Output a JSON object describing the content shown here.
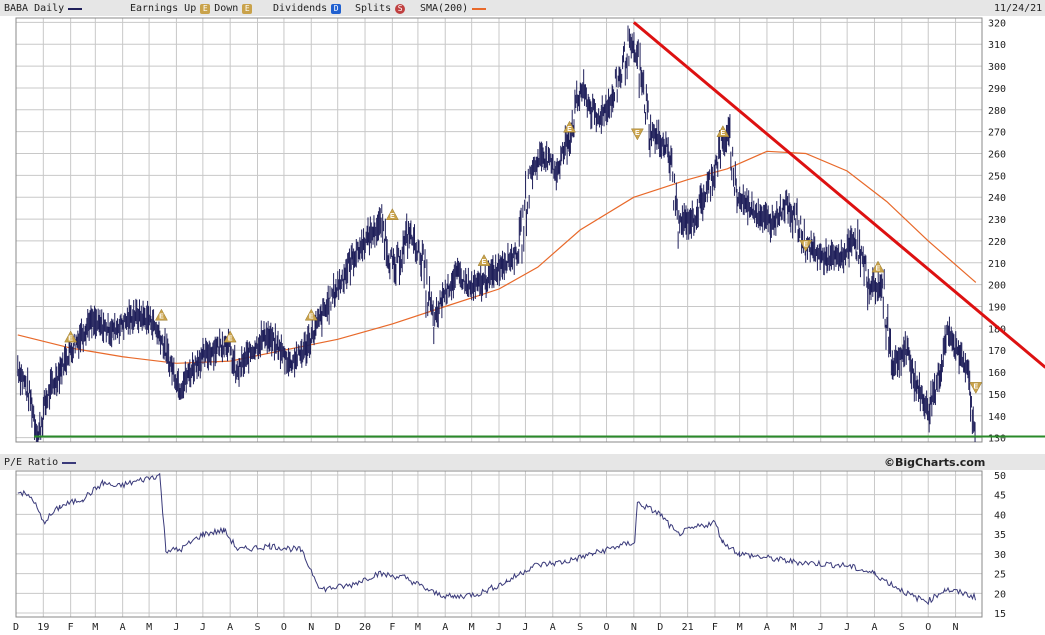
{
  "header": {
    "symbol_label": "BABA Daily",
    "earnings_label": "Earnings Up",
    "down_label": "Down",
    "dividends_label": "Dividends",
    "splits_label": "Splits",
    "sma_label": "SMA(200)",
    "date": "11/24/21",
    "badge_up": "E",
    "badge_down": "E",
    "badge_div": "D",
    "badge_split": "S"
  },
  "pe": {
    "label": "P/E Ratio",
    "credit": "©BigCharts.com"
  },
  "colors": {
    "price": "#1f1f5a",
    "sma": "#e8692a",
    "trendline": "#dd1111",
    "support": "#2a8a2a",
    "earnings": "#c9a24a",
    "dividend": "#2060d0",
    "split": "#c04040",
    "pe": "#3a3a7a",
    "grid": "#c8c8c8"
  },
  "chart_data": [
    {
      "type": "line",
      "name": "price",
      "ylim": [
        128,
        322
      ],
      "yticks": [
        130,
        140,
        150,
        160,
        170,
        180,
        190,
        200,
        210,
        220,
        230,
        240,
        250,
        260,
        270,
        280,
        290,
        300,
        310,
        320
      ],
      "series": [
        {
          "name": "BABA Daily",
          "points": [
            [
              "2018-12-03",
              163
            ],
            [
              "2018-12-18",
              147
            ],
            [
              "2018-12-26",
              130
            ],
            [
              "2019-01-04",
              147
            ],
            [
              "2019-01-20",
              161
            ],
            [
              "2019-02-01",
              170
            ],
            [
              "2019-02-22",
              183
            ],
            [
              "2019-03-20",
              179
            ],
            [
              "2019-04-15",
              186
            ],
            [
              "2019-05-03",
              184
            ],
            [
              "2019-05-14",
              176
            ],
            [
              "2019-05-25",
              164
            ],
            [
              "2019-06-05",
              153
            ],
            [
              "2019-06-25",
              165
            ],
            [
              "2019-07-15",
              171
            ],
            [
              "2019-07-29",
              174
            ],
            [
              "2019-08-08",
              159
            ],
            [
              "2019-08-22",
              168
            ],
            [
              "2019-09-10",
              177
            ],
            [
              "2019-09-25",
              171
            ],
            [
              "2019-10-08",
              164
            ],
            [
              "2019-10-24",
              170
            ],
            [
              "2019-11-10",
              183
            ],
            [
              "2019-11-28",
              197
            ],
            [
              "2019-12-18",
              212
            ],
            [
              "2020-01-05",
              222
            ],
            [
              "2020-01-20",
              228
            ],
            [
              "2020-02-03",
              205
            ],
            [
              "2020-02-20",
              224
            ],
            [
              "2020-03-05",
              212
            ],
            [
              "2020-03-19",
              180
            ],
            [
              "2020-03-29",
              195
            ],
            [
              "2020-04-15",
              205
            ],
            [
              "2020-04-30",
              198
            ],
            [
              "2020-05-18",
              202
            ],
            [
              "2020-06-05",
              210
            ],
            [
              "2020-06-24",
              215
            ],
            [
              "2020-07-06",
              250
            ],
            [
              "2020-07-20",
              260
            ],
            [
              "2020-08-05",
              252
            ],
            [
              "2020-08-20",
              268
            ],
            [
              "2020-09-02",
              290
            ],
            [
              "2020-09-20",
              275
            ],
            [
              "2020-10-08",
              285
            ],
            [
              "2020-10-27",
              310
            ],
            [
              "2020-11-05",
              303
            ],
            [
              "2020-11-20",
              270
            ],
            [
              "2020-12-10",
              262
            ],
            [
              "2020-12-22",
              228
            ],
            [
              "2021-01-08",
              230
            ],
            [
              "2021-01-25",
              245
            ],
            [
              "2021-02-10",
              265
            ],
            [
              "2021-02-17",
              268
            ],
            [
              "2021-02-26",
              240
            ],
            [
              "2021-03-15",
              235
            ],
            [
              "2021-04-05",
              228
            ],
            [
              "2021-04-25",
              238
            ],
            [
              "2021-05-15",
              218
            ],
            [
              "2021-06-05",
              212
            ],
            [
              "2021-06-25",
              212
            ],
            [
              "2021-07-10",
              222
            ],
            [
              "2021-07-25",
              200
            ],
            [
              "2021-08-10",
              198
            ],
            [
              "2021-08-22",
              163
            ],
            [
              "2021-09-05",
              170
            ],
            [
              "2021-09-20",
              152
            ],
            [
              "2021-10-01",
              142
            ],
            [
              "2021-10-15",
              162
            ],
            [
              "2021-10-22",
              178
            ],
            [
              "2021-11-05",
              168
            ],
            [
              "2021-11-15",
              163
            ],
            [
              "2021-11-18",
              145
            ],
            [
              "2021-11-24",
              131
            ]
          ]
        },
        {
          "name": "SMA(200)",
          "points": [
            [
              "2018-12-03",
              177
            ],
            [
              "2019-02-01",
              171
            ],
            [
              "2019-04-01",
              167
            ],
            [
              "2019-06-01",
              164
            ],
            [
              "2019-08-01",
              165
            ],
            [
              "2019-10-01",
              170
            ],
            [
              "2019-12-01",
              175
            ],
            [
              "2020-02-01",
              182
            ],
            [
              "2020-04-01",
              190
            ],
            [
              "2020-06-01",
              198
            ],
            [
              "2020-07-15",
              208
            ],
            [
              "2020-09-01",
              225
            ],
            [
              "2020-11-01",
              240
            ],
            [
              "2021-01-01",
              248
            ],
            [
              "2021-02-15",
              253
            ],
            [
              "2021-04-01",
              261
            ],
            [
              "2021-05-15",
              260
            ],
            [
              "2021-07-01",
              252
            ],
            [
              "2021-08-15",
              238
            ],
            [
              "2021-10-01",
              220
            ],
            [
              "2021-11-24",
              201
            ]
          ]
        }
      ],
      "earnings_up": [
        [
          "2019-02-01",
          176
        ],
        [
          "2019-05-15",
          186
        ],
        [
          "2019-08-01",
          176
        ],
        [
          "2019-11-01",
          186
        ],
        [
          "2020-02-01",
          232
        ],
        [
          "2020-05-15",
          211
        ],
        [
          "2020-08-20",
          272
        ],
        [
          "2021-02-10",
          270
        ],
        [
          "2021-08-05",
          208
        ]
      ],
      "earnings_down": [
        [
          "2020-11-05",
          269
        ],
        [
          "2021-05-15",
          218
        ],
        [
          "2021-11-24",
          153
        ]
      ],
      "trendline": [
        [
          "2020-11-01",
          320
        ],
        [
          "2021-12-05",
          174
        ]
      ],
      "support": 130.5
    },
    {
      "type": "line",
      "name": "pe",
      "ylim": [
        14,
        51
      ],
      "yticks": [
        15,
        20,
        25,
        30,
        35,
        40,
        45,
        50
      ],
      "series": [
        {
          "name": "P/E Ratio",
          "points": [
            [
              "2018-12-03",
              46
            ],
            [
              "2018-12-20",
              44
            ],
            [
              "2019-01-01",
              38
            ],
            [
              "2019-01-20",
              42
            ],
            [
              "2019-02-15",
              44
            ],
            [
              "2019-03-10",
              48
            ],
            [
              "2019-03-25",
              47
            ],
            [
              "2019-05-13",
              50
            ],
            [
              "2019-05-20",
              31
            ],
            [
              "2019-06-05",
              31
            ],
            [
              "2019-07-01",
              35
            ],
            [
              "2019-07-25",
              36
            ],
            [
              "2019-08-10",
              31
            ],
            [
              "2019-09-15",
              32
            ],
            [
              "2019-10-20",
              31
            ],
            [
              "2019-11-12",
              21
            ],
            [
              "2019-12-15",
              22
            ],
            [
              "2020-01-15",
              25
            ],
            [
              "2020-02-15",
              24
            ],
            [
              "2020-03-20",
              20
            ],
            [
              "2020-04-10",
              19
            ],
            [
              "2020-05-10",
              20
            ],
            [
              "2020-06-10",
              23
            ],
            [
              "2020-07-10",
              27
            ],
            [
              "2020-08-15",
              28
            ],
            [
              "2020-09-15",
              30
            ],
            [
              "2020-10-15",
              32
            ],
            [
              "2020-11-02",
              33
            ],
            [
              "2020-11-05",
              43
            ],
            [
              "2020-12-01",
              40
            ],
            [
              "2020-12-20",
              35
            ],
            [
              "2021-01-15",
              37
            ],
            [
              "2021-02-01",
              38
            ],
            [
              "2021-02-10",
              33
            ],
            [
              "2021-03-01",
              30
            ],
            [
              "2021-05-01",
              28
            ],
            [
              "2021-07-01",
              27
            ],
            [
              "2021-08-01",
              25
            ],
            [
              "2021-08-15",
              23
            ],
            [
              "2021-09-15",
              19
            ],
            [
              "2021-10-01",
              18
            ],
            [
              "2021-10-20",
              21
            ],
            [
              "2021-11-10",
              20
            ],
            [
              "2021-11-24",
              19
            ]
          ]
        }
      ]
    }
  ],
  "x_axis": {
    "ticks": [
      {
        "d": "2018-12-01",
        "label": "D"
      },
      {
        "d": "2019-01-01",
        "label": "19"
      },
      {
        "d": "2019-02-01",
        "label": "F"
      },
      {
        "d": "2019-03-01",
        "label": "M"
      },
      {
        "d": "2019-04-01",
        "label": "A"
      },
      {
        "d": "2019-05-01",
        "label": "M"
      },
      {
        "d": "2019-06-01",
        "label": "J"
      },
      {
        "d": "2019-07-01",
        "label": "J"
      },
      {
        "d": "2019-08-01",
        "label": "A"
      },
      {
        "d": "2019-09-01",
        "label": "S"
      },
      {
        "d": "2019-10-01",
        "label": "O"
      },
      {
        "d": "2019-11-01",
        "label": "N"
      },
      {
        "d": "2019-12-01",
        "label": "D"
      },
      {
        "d": "2020-01-01",
        "label": "20"
      },
      {
        "d": "2020-02-01",
        "label": "F"
      },
      {
        "d": "2020-03-01",
        "label": "M"
      },
      {
        "d": "2020-04-01",
        "label": "A"
      },
      {
        "d": "2020-05-01",
        "label": "M"
      },
      {
        "d": "2020-06-01",
        "label": "J"
      },
      {
        "d": "2020-07-01",
        "label": "J"
      },
      {
        "d": "2020-08-01",
        "label": "A"
      },
      {
        "d": "2020-09-01",
        "label": "S"
      },
      {
        "d": "2020-10-01",
        "label": "O"
      },
      {
        "d": "2020-11-01",
        "label": "N"
      },
      {
        "d": "2020-12-01",
        "label": "D"
      },
      {
        "d": "2021-01-01",
        "label": "21"
      },
      {
        "d": "2021-02-01",
        "label": "F"
      },
      {
        "d": "2021-03-01",
        "label": "M"
      },
      {
        "d": "2021-04-01",
        "label": "A"
      },
      {
        "d": "2021-05-01",
        "label": "M"
      },
      {
        "d": "2021-06-01",
        "label": "J"
      },
      {
        "d": "2021-07-01",
        "label": "J"
      },
      {
        "d": "2021-08-01",
        "label": "A"
      },
      {
        "d": "2021-09-01",
        "label": "S"
      },
      {
        "d": "2021-10-01",
        "label": "O"
      },
      {
        "d": "2021-11-01",
        "label": "N"
      }
    ]
  }
}
